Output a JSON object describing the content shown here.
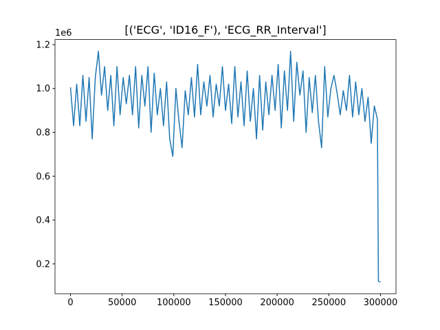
{
  "chart_data": {
    "type": "line",
    "title": "[('ECG', 'ID16_F'), 'ECG_RR_Interval']",
    "y_offset_label": "1e6",
    "color": "#1f77b4",
    "x": [
      0,
      3000,
      6000,
      9000,
      12000,
      15000,
      18000,
      21000,
      24000,
      27000,
      30000,
      33000,
      36000,
      39000,
      42000,
      45000,
      48000,
      51000,
      54000,
      57000,
      60000,
      63000,
      66000,
      69000,
      72000,
      75000,
      78000,
      81000,
      84000,
      87000,
      90000,
      93000,
      96000,
      99000,
      102000,
      105000,
      108000,
      111000,
      114000,
      117000,
      120000,
      123000,
      126000,
      129000,
      132000,
      135000,
      138000,
      141000,
      144000,
      147000,
      150000,
      153000,
      156000,
      159000,
      162000,
      165000,
      168000,
      171000,
      174000,
      177000,
      180000,
      183000,
      186000,
      189000,
      192000,
      195000,
      198000,
      201000,
      204000,
      207000,
      210000,
      213000,
      216000,
      219000,
      222000,
      225000,
      228000,
      231000,
      234000,
      237000,
      240000,
      243000,
      246000,
      249000,
      252000,
      255000,
      258000,
      261000,
      264000,
      267000,
      270000,
      273000,
      276000,
      279000,
      282000,
      285000,
      288000,
      291000,
      294000,
      297000,
      298000,
      300000
    ],
    "values": [
      1005000,
      830000,
      1020000,
      830000,
      1060000,
      850000,
      1050000,
      770000,
      1050000,
      1170000,
      970000,
      1100000,
      900000,
      1060000,
      830000,
      1100000,
      880000,
      1050000,
      930000,
      1060000,
      880000,
      1100000,
      820000,
      1060000,
      920000,
      1100000,
      800000,
      1070000,
      880000,
      1000000,
      830000,
      1030000,
      770000,
      690000,
      1000000,
      850000,
      730000,
      990000,
      880000,
      1050000,
      870000,
      1110000,
      880000,
      1030000,
      920000,
      1060000,
      870000,
      1020000,
      920000,
      1100000,
      900000,
      1020000,
      840000,
      1100000,
      870000,
      1030000,
      830000,
      1080000,
      850000,
      1000000,
      770000,
      1060000,
      810000,
      1030000,
      880000,
      1060000,
      900000,
      1110000,
      820000,
      1080000,
      900000,
      1170000,
      850000,
      1120000,
      970000,
      1080000,
      800000,
      1050000,
      890000,
      1060000,
      850000,
      730000,
      1100000,
      870000,
      1000000,
      1060000,
      980000,
      880000,
      990000,
      900000,
      1060000,
      870000,
      1030000,
      880000,
      1000000,
      850000,
      960000,
      750000,
      920000,
      860000,
      120000,
      117000
    ],
    "xlim": [
      -15000,
      315000
    ],
    "ylim": [
      64000,
      1223000
    ],
    "xticks": [
      0,
      50000,
      100000,
      150000,
      200000,
      250000,
      300000
    ],
    "yticks": [
      {
        "value": 200000,
        "label": "0.2"
      },
      {
        "value": 400000,
        "label": "0.4"
      },
      {
        "value": 600000,
        "label": "0.6"
      },
      {
        "value": 800000,
        "label": "0.8"
      },
      {
        "value": 1000000,
        "label": "1.0"
      },
      {
        "value": 1200000,
        "label": "1.2"
      }
    ],
    "grid": false
  }
}
